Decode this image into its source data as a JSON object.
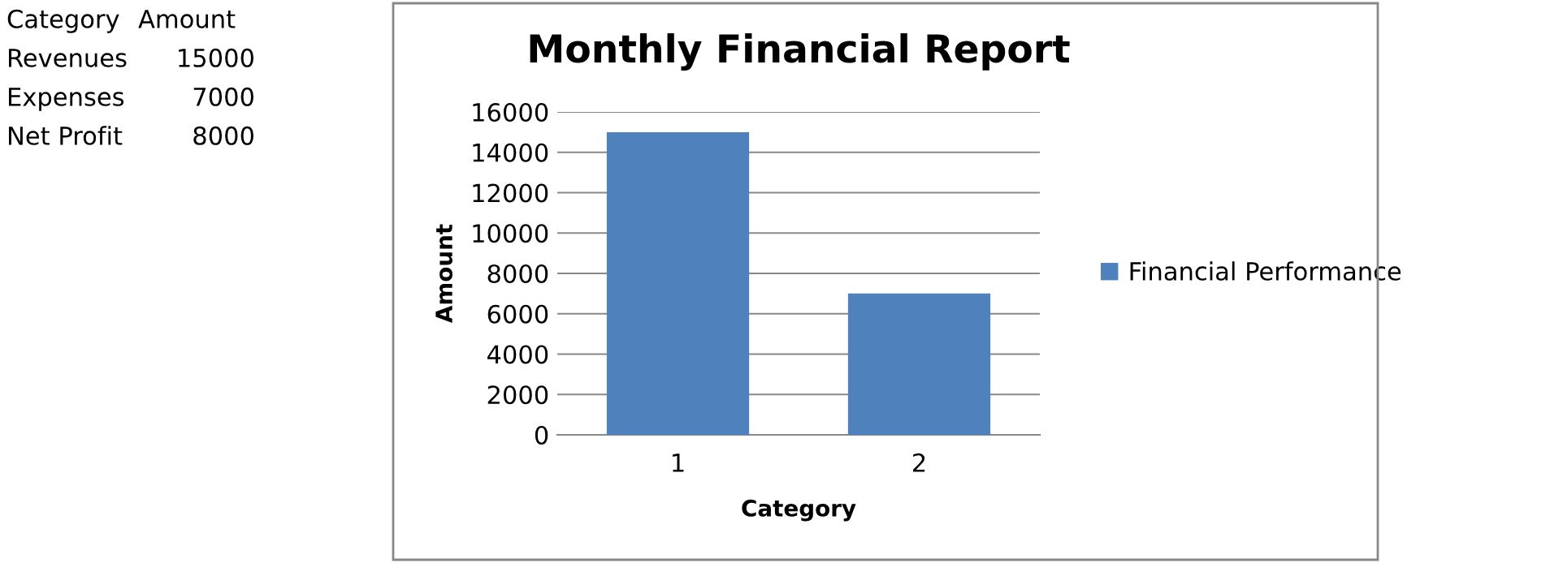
{
  "chart_data": {
    "type": "bar",
    "title": "Monthly Financial Report",
    "xlabel": "Category",
    "ylabel": "Amount",
    "categories": [
      "1",
      "2"
    ],
    "series": [
      {
        "name": "Financial Performance",
        "color": "#4f81bd",
        "values": [
          15000,
          7000
        ]
      }
    ],
    "ylim": [
      0,
      16000
    ],
    "yticks": [
      0,
      2000,
      4000,
      6000,
      8000,
      10000,
      12000,
      14000,
      16000
    ],
    "grid": "y",
    "legend": "right",
    "annotations": [
      "Category",
      "Amount",
      "Revenues",
      "15000",
      "Expenses",
      "7000",
      "Net Profit",
      "8000"
    ]
  }
}
